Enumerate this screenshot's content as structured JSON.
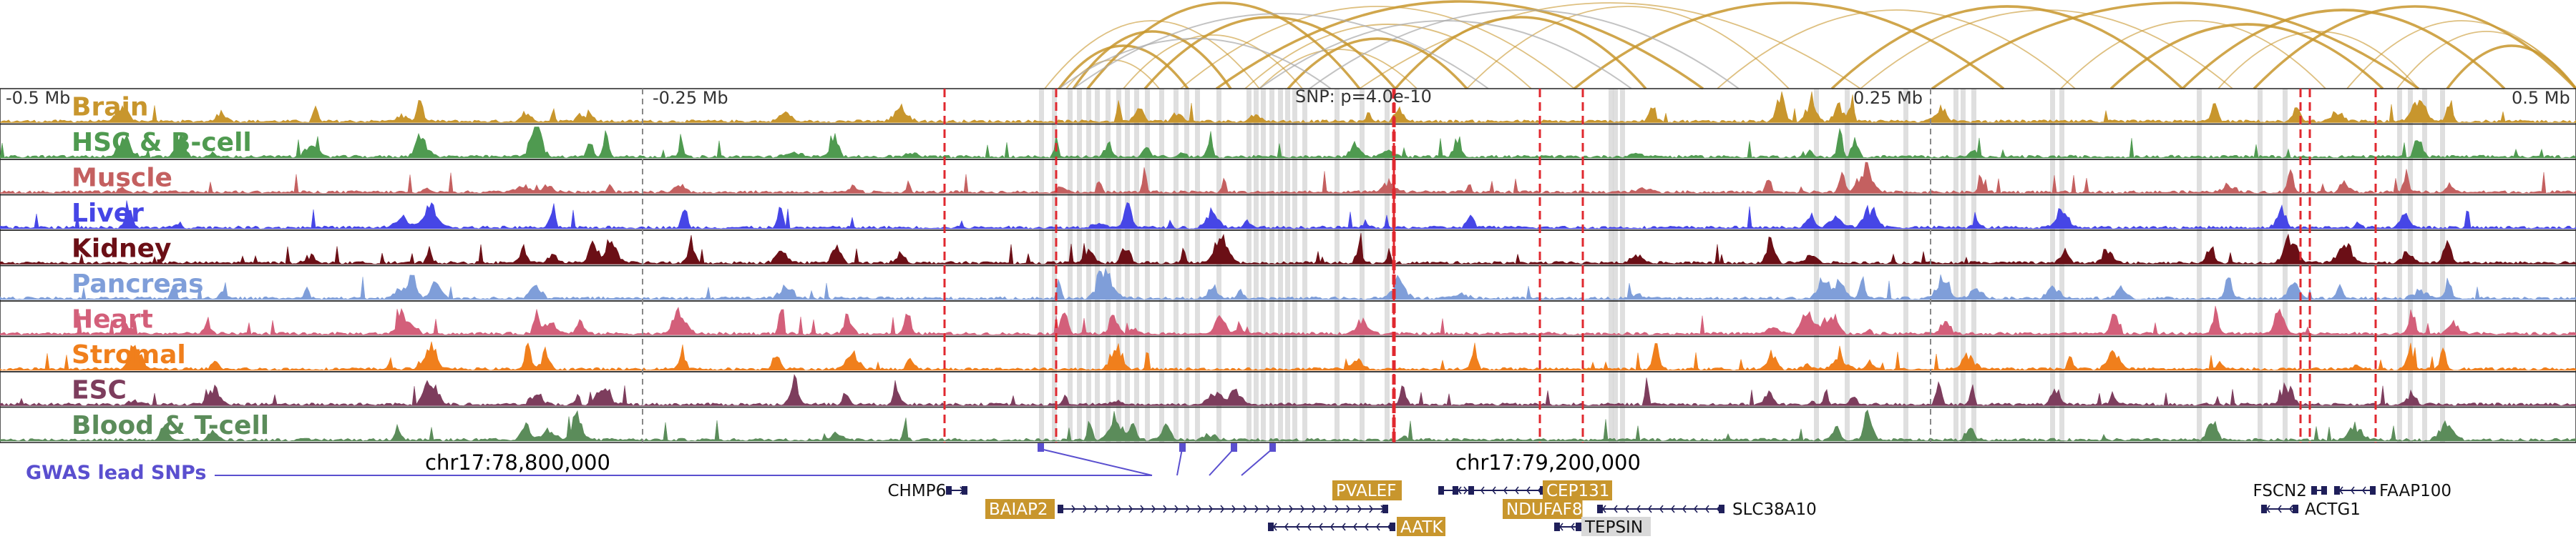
{
  "scale": {
    "left_label": "-0.5 Mb",
    "mid_left_label": "-0.25 Mb",
    "snp_label": "SNP: p=4.0e-10",
    "mid_right_label": "0.25 Mb",
    "right_label": "0.5 Mb",
    "range_mb": [
      -0.5,
      0.5
    ],
    "snp_mb": 0.0
  },
  "tracks": [
    {
      "name": "Brain",
      "color": "#c8962d"
    },
    {
      "name": "HSC & B-cell",
      "color": "#4f9a50"
    },
    {
      "name": "Muscle",
      "color": "#c46060"
    },
    {
      "name": "Liver",
      "color": "#4646e6"
    },
    {
      "name": "Kidney",
      "color": "#6b0f16"
    },
    {
      "name": "Pancreas",
      "color": "#7f9ed9"
    },
    {
      "name": "Heart",
      "color": "#d35f7a"
    },
    {
      "name": "Stromal",
      "color": "#f07f1c"
    },
    {
      "name": "ESC",
      "color": "#7d3d5d"
    },
    {
      "name": "Blood & T-cell",
      "color": "#5b8c5a"
    }
  ],
  "gwas": {
    "label": "GWAS lead SNPs",
    "color": "#5a4fcf",
    "snp_mb": [
      -0.1,
      -0.045,
      -0.025,
      -0.01
    ]
  },
  "coordinates": {
    "left": "chr17:78,800,000",
    "right": "chr17:79,200,000"
  },
  "genes": [
    {
      "name": "CHMP6",
      "highlight": false
    },
    {
      "name": "BAIAP2",
      "highlight": true
    },
    {
      "name": "PVALEF",
      "highlight": true
    },
    {
      "name": "CEP131",
      "highlight": true
    },
    {
      "name": "NDUFAF8",
      "highlight": true
    },
    {
      "name": "AATK",
      "highlight": true
    },
    {
      "name": "TEPSIN",
      "highlight": false
    },
    {
      "name": "SLC38A10",
      "highlight": false
    },
    {
      "name": "FSCN2",
      "highlight": false
    },
    {
      "name": "FAAP100",
      "highlight": false
    },
    {
      "name": "ACTG1",
      "highlight": false
    }
  ],
  "highlight_colors": {
    "gene_box": "#c8962d",
    "gene_box_grey": "#d9d9d9",
    "red_line": "#e0282f",
    "grey_band": "#d4d4d4",
    "arc": "#c8962d",
    "gene_line": "#1f1f5a"
  }
}
